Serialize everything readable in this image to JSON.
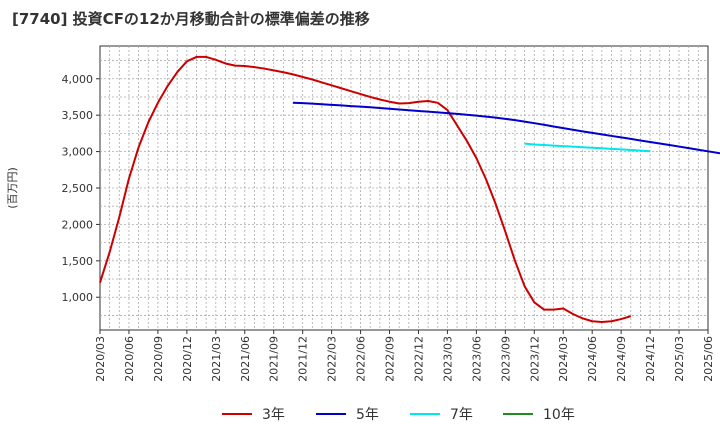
{
  "chart_data": {
    "type": "line",
    "title": "[7740]  投資CFの12か月移動合計の標準偏差の推移",
    "ylabel": "(百万円)",
    "xlabel": "",
    "ylim": [
      550,
      4450
    ],
    "yticks": [
      1000,
      1500,
      2000,
      2500,
      3000,
      3500,
      4000
    ],
    "ytick_labels": [
      "1,000",
      "1,500",
      "2,000",
      "2,500",
      "3,000",
      "3,500",
      "4,000"
    ],
    "xticks": [
      "2020/03",
      "2020/06",
      "2020/09",
      "2020/12",
      "2021/03",
      "2021/06",
      "2021/09",
      "2021/12",
      "2022/03",
      "2022/06",
      "2022/09",
      "2022/12",
      "2023/03",
      "2023/06",
      "2023/09",
      "2023/12",
      "2024/03",
      "2024/06",
      "2024/09",
      "2024/12",
      "2025/03",
      "2025/06"
    ],
    "grid": true,
    "legend_position": "bottom",
    "series": [
      {
        "name": "3年",
        "color": "#cc0000",
        "start": "2020/03",
        "values": [
          1200,
          1620,
          2100,
          2630,
          3060,
          3400,
          3670,
          3900,
          4090,
          4240,
          4300,
          4300,
          4260,
          4210,
          4180,
          4175,
          4160,
          4140,
          4115,
          4090,
          4060,
          4025,
          3990,
          3950,
          3910,
          3870,
          3830,
          3790,
          3750,
          3715,
          3685,
          3660,
          3665,
          3685,
          3695,
          3670,
          3570,
          3360,
          3150,
          2910,
          2620,
          2280,
          1900,
          1500,
          1150,
          930,
          830,
          830,
          845,
          770,
          710,
          670,
          660,
          670,
          700,
          740
        ]
      },
      {
        "name": "5年",
        "color": "#0000cc",
        "start": "2021/11",
        "values": [
          3670,
          3665,
          3658,
          3650,
          3642,
          3634,
          3625,
          3617,
          3608,
          3598,
          3588,
          3578,
          3568,
          3558,
          3548,
          3538,
          3528,
          3518,
          3506,
          3494,
          3480,
          3466,
          3450,
          3432,
          3412,
          3390,
          3368,
          3345,
          3322,
          3300,
          3278,
          3257,
          3236,
          3215,
          3195,
          3174,
          3153,
          3132,
          3111,
          3090,
          3069,
          3047,
          3026,
          3004,
          2982,
          2962,
          2940
        ]
      },
      {
        "name": "7年",
        "color": "#00e5ee",
        "start": "2023/11",
        "values": [
          3110,
          3098,
          3090,
          3082,
          3075,
          3068,
          3060,
          3052,
          3045,
          3038,
          3030,
          3022,
          3014,
          3005
        ]
      },
      {
        "name": "10年",
        "color": "#228b22",
        "start": "2024/12",
        "values": []
      }
    ]
  }
}
